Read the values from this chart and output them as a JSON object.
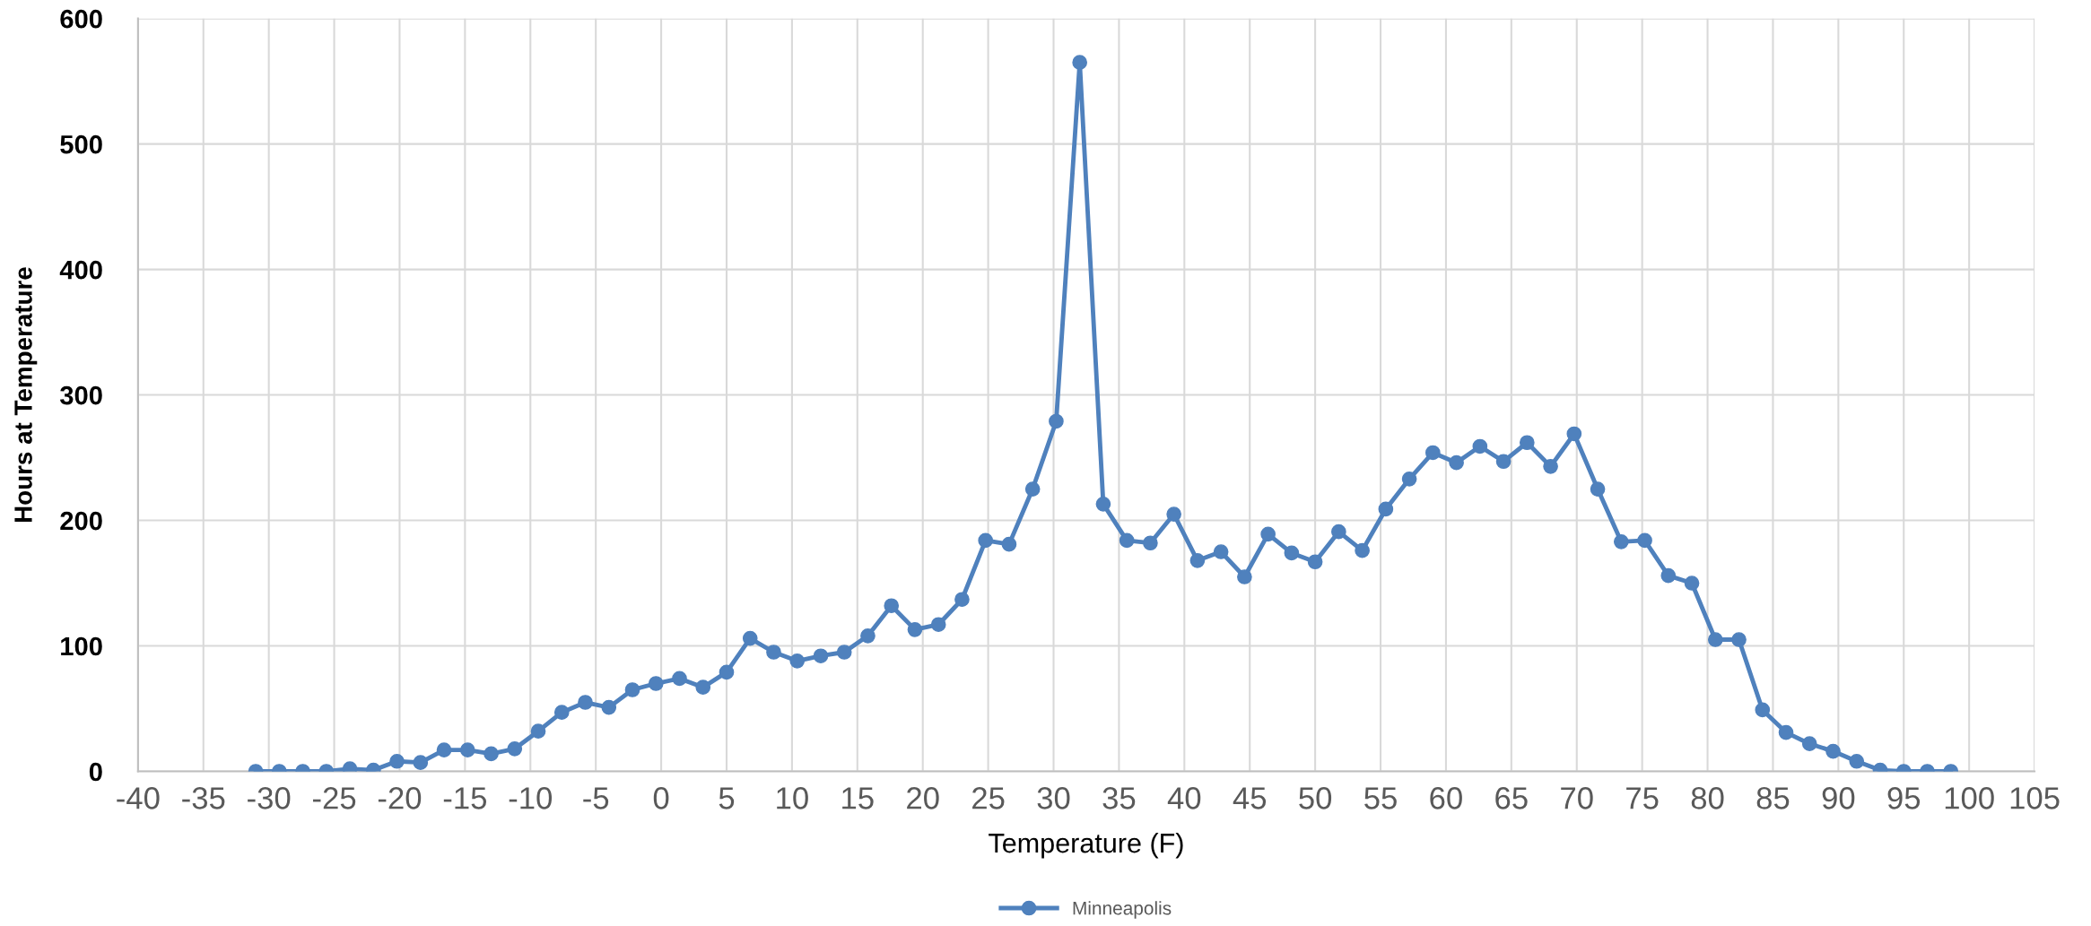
{
  "chart_data": {
    "type": "line",
    "xlabel": "Temperature (F)",
    "ylabel": "Hours at Temperature",
    "x": [
      -31,
      -29.2,
      -27.4,
      -25.6,
      -23.8,
      -22,
      -20.2,
      -18.4,
      -16.6,
      -14.8,
      -13,
      -11.2,
      -9.4,
      -7.6,
      -5.8,
      -4,
      -2.2,
      -0.4,
      1.4,
      3.2,
      5,
      6.8,
      8.6,
      10.4,
      12.2,
      14,
      15.8,
      17.6,
      19.4,
      21.2,
      23,
      24.8,
      26.6,
      28.4,
      30.2,
      32,
      33.8,
      35.6,
      37.4,
      39.2,
      41,
      42.8,
      44.6,
      46.4,
      48.2,
      50,
      51.8,
      53.6,
      55.4,
      57.2,
      59,
      60.8,
      62.6,
      64.4,
      66.2,
      68,
      69.8,
      71.6,
      73.4,
      75.2,
      77,
      78.8,
      80.6,
      82.4,
      84.2,
      86,
      87.8,
      89.6,
      91.4,
      93.2,
      95,
      96.8,
      98.6
    ],
    "series": [
      {
        "name": "Minneapolis",
        "color": "#4f81bd",
        "values": [
          0,
          0,
          0,
          0,
          2,
          1,
          8,
          7,
          17,
          17,
          14,
          18,
          32,
          47,
          55,
          51,
          65,
          70,
          74,
          67,
          79,
          106,
          95,
          88,
          92,
          95,
          108,
          132,
          113,
          117,
          137,
          184,
          181,
          225,
          279,
          565,
          213,
          184,
          182,
          205,
          168,
          175,
          155,
          189,
          174,
          167,
          191,
          176,
          209,
          233,
          254,
          246,
          259,
          247,
          262,
          243,
          269,
          225,
          183,
          184,
          156,
          150,
          105,
          105,
          49,
          31,
          22,
          16,
          8,
          1,
          0,
          0,
          0
        ]
      }
    ],
    "xlim": [
      -40,
      105
    ],
    "xticks": [
      -40,
      -35,
      -30,
      -25,
      -20,
      -15,
      -10,
      -5,
      0,
      5,
      10,
      15,
      20,
      25,
      30,
      35,
      40,
      45,
      50,
      55,
      60,
      65,
      70,
      75,
      80,
      85,
      90,
      95,
      100,
      105
    ],
    "ylim": [
      0,
      600
    ],
    "yticks": [
      0,
      100,
      200,
      300,
      400,
      500,
      600
    ],
    "grid": true,
    "legend": "bottom",
    "marker": "circle",
    "line_style": "solid"
  }
}
